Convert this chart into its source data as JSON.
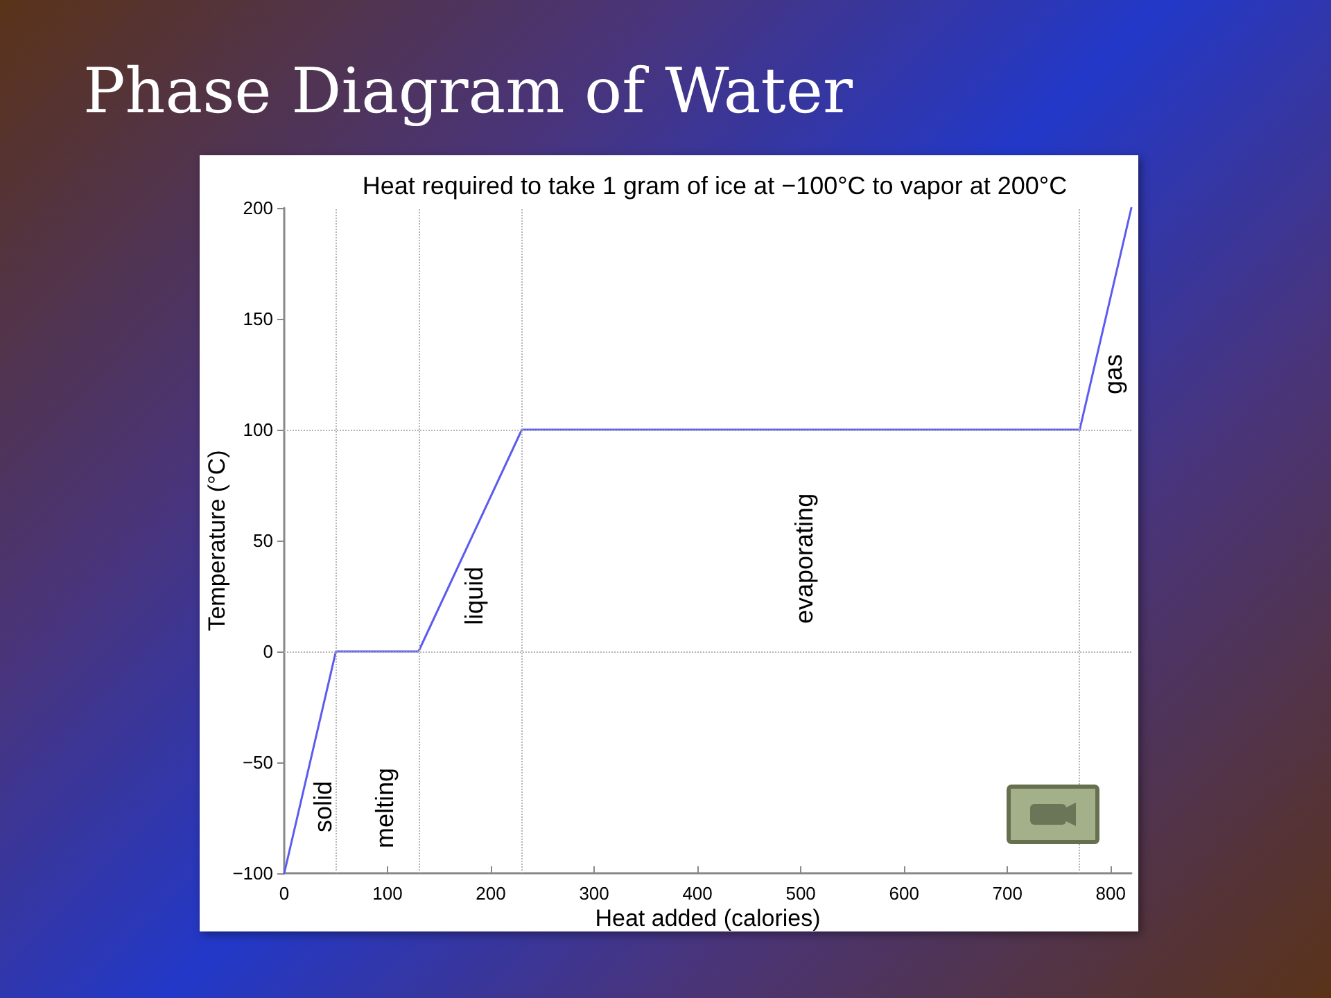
{
  "chart_data": {
    "type": "line",
    "title": "Phase Diagram of Water",
    "subtitle": "Heat required to take 1 gram of ice at −100°C to vapor at 200°C",
    "xlabel": "Heat added (calories)",
    "ylabel": "Temperature (°C)",
    "x": [
      0,
      50,
      130,
      230,
      770,
      820
    ],
    "values": [
      -100,
      0,
      0,
      100,
      100,
      200
    ],
    "color": "#5b5bf0",
    "marker": "none",
    "line_style": "solid",
    "xlim": [
      0,
      820
    ],
    "xticks": [
      0,
      100,
      200,
      300,
      400,
      500,
      600,
      700,
      800
    ],
    "ylim": [
      -100,
      200
    ],
    "yticks": [
      {
        "value": -100,
        "label": "−100"
      },
      {
        "value": -50,
        "label": "−50"
      },
      0,
      50,
      100,
      150,
      200
    ],
    "ref_lines": [
      {
        "axis": "x",
        "value": 50,
        "color": "#b4b4b4",
        "line_style": "dotted"
      },
      {
        "axis": "x",
        "value": 130,
        "color": "#b4b4b4",
        "line_style": "dotted"
      },
      {
        "axis": "x",
        "value": 230,
        "color": "#b4b4b4",
        "line_style": "dotted"
      },
      {
        "axis": "x",
        "value": 770,
        "color": "#b4b4b4",
        "line_style": "dotted"
      },
      {
        "axis": "y",
        "value": 0,
        "color": "#b4b4b4",
        "line_style": "dotted"
      },
      {
        "axis": "y",
        "value": 100,
        "color": "#b4b4b4",
        "line_style": "dotted"
      }
    ],
    "annotations": [
      "solid",
      "melting",
      "liquid",
      "evaporating",
      "gas"
    ]
  }
}
